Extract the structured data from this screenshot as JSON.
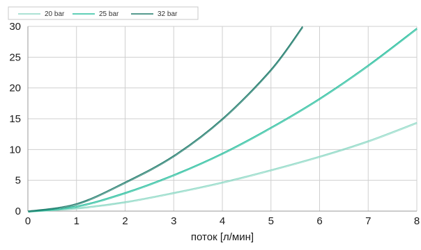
{
  "chart_data": {
    "type": "line",
    "title": "",
    "xlabel": "поток [л/мин]",
    "ylabel": "",
    "xlim": [
      0,
      8
    ],
    "ylim": [
      0,
      30
    ],
    "x_ticks": [
      0,
      1,
      2,
      3,
      4,
      5,
      6,
      7,
      8
    ],
    "y_ticks": [
      0,
      5,
      10,
      15,
      20,
      25,
      30
    ],
    "grid": true,
    "legend_position": "top-left",
    "series": [
      {
        "name": "20 bar",
        "color": "#8fd9c6",
        "x": [
          0,
          1,
          2,
          3,
          4,
          5,
          6,
          7,
          8
        ],
        "y": [
          0,
          0.5,
          1.5,
          3.0,
          4.7,
          6.7,
          8.9,
          11.4,
          14.4
        ]
      },
      {
        "name": "25 bar",
        "color": "#2bbf9f",
        "x": [
          0,
          1,
          2,
          3,
          4,
          5,
          6,
          7,
          8
        ],
        "y": [
          0,
          0.8,
          3.0,
          5.9,
          9.4,
          13.6,
          18.3,
          23.7,
          29.7
        ]
      },
      {
        "name": "32 bar",
        "color": "#1e7a6a",
        "x": [
          0,
          1,
          2,
          3,
          4,
          5,
          5.65
        ],
        "y": [
          0,
          1.2,
          4.7,
          9.0,
          15.0,
          23.0,
          30.0
        ]
      }
    ]
  }
}
